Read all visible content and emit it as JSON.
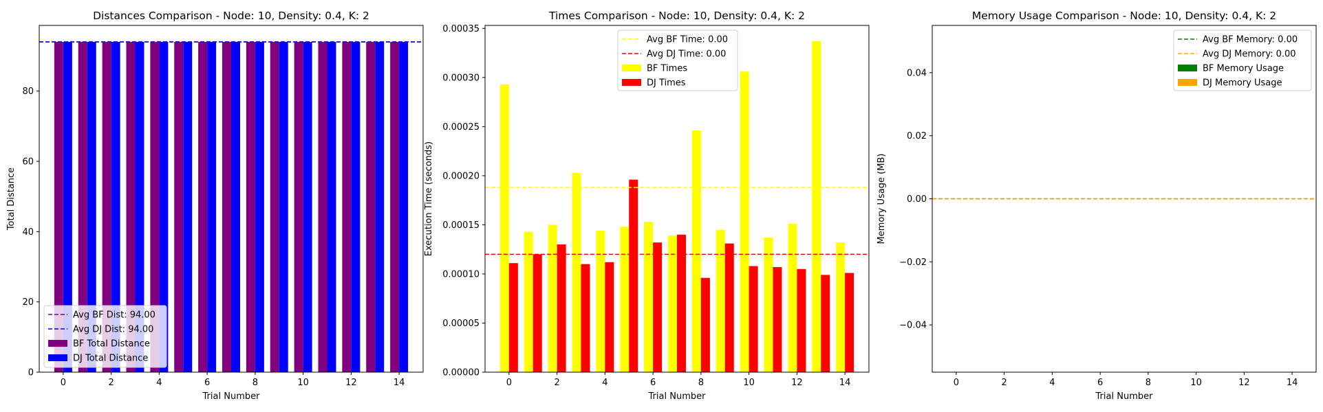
{
  "chart_data": [
    {
      "type": "bar",
      "title": "Distances Comparison - Node: 10, Density: 0.4, K: 2",
      "xlabel": "Trial Number",
      "ylabel": "Total Distance",
      "x": [
        0,
        1,
        2,
        3,
        4,
        5,
        6,
        7,
        8,
        9,
        10,
        11,
        12,
        13,
        14
      ],
      "xticks": [
        0,
        2,
        4,
        6,
        8,
        10,
        12,
        14
      ],
      "xlim": [
        -1,
        15
      ],
      "ylim": [
        0,
        98.7
      ],
      "yticks": [
        0,
        20,
        40,
        60,
        80
      ],
      "ytick_labels": [
        "0",
        "20",
        "40",
        "60",
        "80"
      ],
      "series": [
        {
          "name": "BF Total Distance",
          "color": "#800080",
          "values": [
            94,
            94,
            94,
            94,
            94,
            94,
            94,
            94,
            94,
            94,
            94,
            94,
            94,
            94,
            94
          ]
        },
        {
          "name": "DJ Total Distance",
          "color": "#0000ff",
          "values": [
            94,
            94,
            94,
            94,
            94,
            94,
            94,
            94,
            94,
            94,
            94,
            94,
            94,
            94,
            94
          ]
        }
      ],
      "hlines": [
        {
          "label": "Avg BF Dist: 94.00",
          "value": 94,
          "color": "#800080"
        },
        {
          "label": "Avg DJ Dist: 94.00",
          "value": 94,
          "color": "#0000ff"
        }
      ],
      "legend": "lower-left"
    },
    {
      "type": "bar",
      "title": "Times Comparison - Node: 10, Density: 0.4, K: 2",
      "xlabel": "Trial Number",
      "ylabel": "Execution Time (seconds)",
      "x": [
        0,
        1,
        2,
        3,
        4,
        5,
        6,
        7,
        8,
        9,
        10,
        11,
        12,
        13,
        14
      ],
      "xticks": [
        0,
        2,
        4,
        6,
        8,
        10,
        12,
        14
      ],
      "xlim": [
        -1,
        15
      ],
      "ylim": [
        0,
        0.000353
      ],
      "yticks": [
        0,
        5e-05,
        0.0001,
        0.00015,
        0.0002,
        0.00025,
        0.0003,
        0.00035
      ],
      "ytick_labels": [
        "0.00000",
        "0.00005",
        "0.00010",
        "0.00015",
        "0.00020",
        "0.00025",
        "0.00030",
        "0.00035"
      ],
      "series": [
        {
          "name": "BF Times",
          "color": "#ffff00",
          "values": [
            0.000293,
            0.000143,
            0.00015,
            0.000203,
            0.000144,
            0.000148,
            0.000153,
            0.000139,
            0.000246,
            0.000145,
            0.000306,
            0.000137,
            0.000151,
            0.000337,
            0.000132
          ]
        },
        {
          "name": "DJ Times",
          "color": "#ff0000",
          "values": [
            0.000111,
            0.00012,
            0.00013,
            0.00011,
            0.000112,
            0.000196,
            0.000132,
            0.00014,
            9.6e-05,
            0.000131,
            0.000108,
            0.000107,
            0.000105,
            9.9e-05,
            0.000101
          ]
        }
      ],
      "hlines": [
        {
          "label": "Avg BF Time: 0.00",
          "value": 0.000188,
          "color": "#ffff00"
        },
        {
          "label": "Avg DJ Time: 0.00",
          "value": 0.00012,
          "color": "#ff0000"
        }
      ],
      "legend": "upper-center"
    },
    {
      "type": "bar",
      "title": "Memory Usage Comparison - Node: 10, Density: 0.4, K: 2",
      "xlabel": "Trial Number",
      "ylabel": "Memory Usage (MB)",
      "x": [
        0,
        1,
        2,
        3,
        4,
        5,
        6,
        7,
        8,
        9,
        10,
        11,
        12,
        13,
        14
      ],
      "xticks": [
        0,
        2,
        4,
        6,
        8,
        10,
        12,
        14
      ],
      "xlim": [
        -1,
        15
      ],
      "ylim": [
        -0.055,
        0.055
      ],
      "yticks": [
        -0.04,
        -0.02,
        0,
        0.02,
        0.04
      ],
      "ytick_labels": [
        "−0.04",
        "−0.02",
        "0.00",
        "0.02",
        "0.04"
      ],
      "series": [
        {
          "name": "BF Memory Usage",
          "color": "#008000",
          "values": [
            0,
            0,
            0,
            0,
            0,
            0,
            0,
            0,
            0,
            0,
            0,
            0,
            0,
            0,
            0
          ]
        },
        {
          "name": "DJ Memory Usage",
          "color": "#ffa500",
          "values": [
            0,
            0,
            0,
            0,
            0,
            0,
            0,
            0,
            0,
            0,
            0,
            0,
            0,
            0,
            0
          ]
        }
      ],
      "hlines": [
        {
          "label": "Avg BF Memory: 0.00",
          "value": 0,
          "color": "#008000"
        },
        {
          "label": "Avg DJ Memory: 0.00",
          "value": 0,
          "color": "#ffa500"
        }
      ],
      "legend": "upper-right"
    }
  ]
}
